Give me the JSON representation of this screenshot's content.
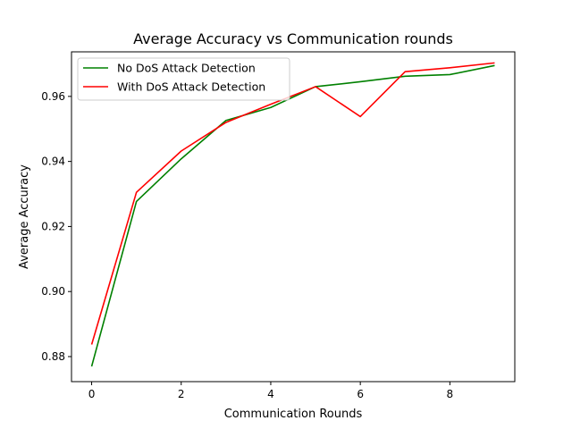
{
  "chart_data": {
    "type": "line",
    "title": "Average Accuracy vs Communication rounds",
    "xlabel": "Communication Rounds",
    "ylabel": "Average Accuracy",
    "x": [
      0,
      1,
      2,
      3,
      4,
      5,
      6,
      7,
      8,
      9
    ],
    "xlim": [
      -0.45,
      9.45
    ],
    "ylim": [
      0.8723,
      0.9737
    ],
    "xticks": [
      0,
      2,
      4,
      6,
      8
    ],
    "xtick_labels": [
      "0",
      "2",
      "4",
      "6",
      "8"
    ],
    "yticks": [
      0.88,
      0.9,
      0.92,
      0.94,
      0.96
    ],
    "ytick_labels": [
      "0.88",
      "0.90",
      "0.92",
      "0.94",
      "0.96"
    ],
    "grid": false,
    "legend_position": "top-left",
    "series": [
      {
        "name": "No DoS Attack Detection",
        "color": "#008000",
        "values": [
          0.877,
          0.9277,
          0.9408,
          0.9526,
          0.9566,
          0.963,
          0.9645,
          0.9662,
          0.9667,
          0.9695
        ]
      },
      {
        "name": "With DoS Attack Detection",
        "color": "#ff0000",
        "values": [
          0.8837,
          0.9305,
          0.9432,
          0.952,
          0.9576,
          0.963,
          0.9538,
          0.9676,
          0.9688,
          0.9703
        ]
      }
    ]
  }
}
